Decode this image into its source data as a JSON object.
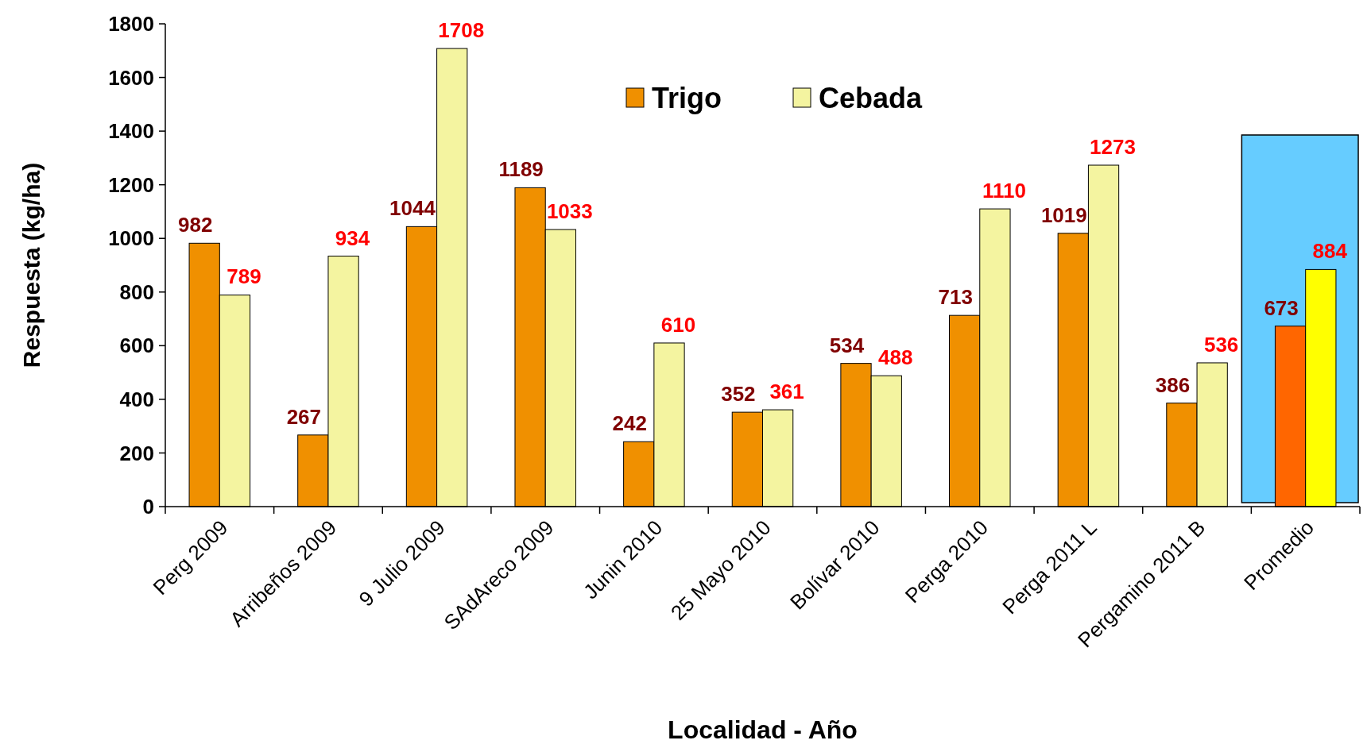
{
  "chart_data": {
    "type": "bar",
    "xlabel": "Localidad - Año",
    "ylabel": "Respuesta (kg/ha)",
    "categories": [
      "Perg 2009",
      "Arribeños 2009",
      "9 Julio 2009",
      "SAdAreco 2009",
      "Junin 2010",
      "25 Mayo 2010",
      "Bolívar 2010",
      "Perga 2010",
      "Perga 2011 L",
      "Pergamino 2011 B",
      "Promedio"
    ],
    "series": [
      {
        "name": "Trigo",
        "color": "#f09000",
        "colors": [
          "#f09000",
          "#f09000",
          "#f09000",
          "#f09000",
          "#f09000",
          "#f09000",
          "#f09000",
          "#f09000",
          "#f09000",
          "#f09000",
          "#ff6600"
        ],
        "values": [
          982,
          267,
          1044,
          1189,
          242,
          352,
          534,
          713,
          1019,
          386,
          673
        ]
      },
      {
        "name": "Cebada",
        "color": "#f4f4a0",
        "colors": [
          "#f4f4a0",
          "#f4f4a0",
          "#f4f4a0",
          "#f4f4a0",
          "#f4f4a0",
          "#f4f4a0",
          "#f4f4a0",
          "#f4f4a0",
          "#f4f4a0",
          "#f4f4a0",
          "#ffff00"
        ],
        "values": [
          789,
          934,
          1708,
          1033,
          610,
          361,
          488,
          1110,
          1273,
          536,
          884
        ]
      }
    ],
    "ylim": [
      0,
      1800
    ],
    "yticks": [
      0,
      200,
      400,
      600,
      800,
      1000,
      1200,
      1400,
      1600,
      1800
    ],
    "data_labels": true,
    "legend": "top",
    "grid": false
  }
}
